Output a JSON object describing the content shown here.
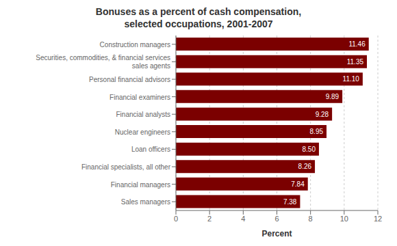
{
  "chart_data": {
    "type": "bar",
    "orientation": "horizontal",
    "title": "Bonuses as a percent of cash compensation,\nselected occupations, 2001-2007",
    "x_label": "Percent",
    "categories": [
      "Sales managers",
      "Financial managers",
      "Financial specialists, all other",
      "Loan officers",
      "Nuclear engineers",
      "Financial analysts",
      "Financial examiners",
      "Personal financial advisors",
      "Securities, commodities, & financial services\nsales agents",
      "Construction managers"
    ],
    "values": [
      7.38,
      7.84,
      8.26,
      8.5,
      8.95,
      9.28,
      9.89,
      11.1,
      11.35,
      11.46
    ],
    "value_labels": [
      "7.38",
      "7.84",
      "8.26",
      "8.50",
      "8.95",
      "9.28",
      "9.89",
      "11.10",
      "11.35",
      "11.46"
    ],
    "data_labels": true,
    "color": "#7B0000",
    "xlim": [
      0,
      12
    ],
    "xticks": [
      0,
      2,
      4,
      6,
      8,
      10,
      12
    ],
    "grid": true
  }
}
